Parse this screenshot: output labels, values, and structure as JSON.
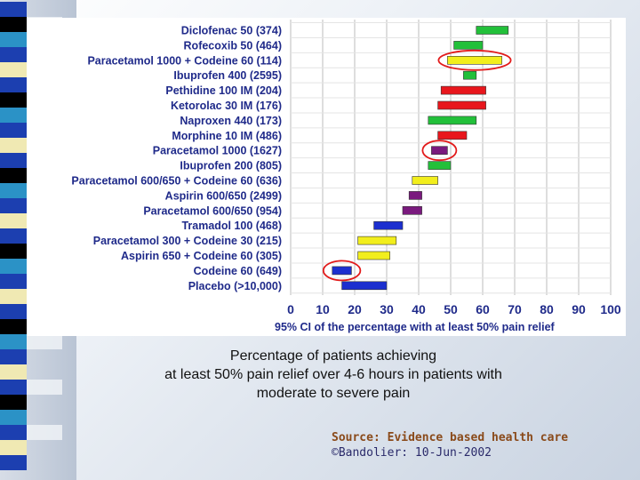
{
  "chart_data": {
    "type": "interval",
    "xlabel": "95% CI of the percentage with at least 50% pain relief",
    "xlim": [
      0,
      100
    ],
    "x_ticks": [
      "0",
      "10",
      "20",
      "30",
      "40",
      "50",
      "60",
      "70",
      "80",
      "90",
      "100"
    ],
    "grid": true,
    "rows": [
      {
        "label": "Diclofenac 50 (374)",
        "low": 58,
        "high": 68,
        "color": "#22c03a",
        "circled": false
      },
      {
        "label": "Rofecoxib 50 (464)",
        "low": 51,
        "high": 60,
        "color": "#22c03a",
        "circled": false
      },
      {
        "label": "Paracetamol 1000 + Codeine 60 (114)",
        "low": 49,
        "high": 66,
        "color": "#f2ee1c",
        "circled": true
      },
      {
        "label": "Ibuprofen 400 (2595)",
        "low": 54,
        "high": 58,
        "color": "#22c03a",
        "circled": false
      },
      {
        "label": "Pethidine 100 IM (204)",
        "low": 47,
        "high": 61,
        "color": "#e8161c",
        "circled": false
      },
      {
        "label": "Ketorolac 30 IM (176)",
        "low": 46,
        "high": 61,
        "color": "#e8161c",
        "circled": false
      },
      {
        "label": "Naproxen 440 (173)",
        "low": 43,
        "high": 58,
        "color": "#22c03a",
        "circled": false
      },
      {
        "label": "Morphine 10 IM (486)",
        "low": 46,
        "high": 55,
        "color": "#e8161c",
        "circled": false
      },
      {
        "label": "Paracetamol 1000 (1627)",
        "low": 44,
        "high": 49,
        "color": "#7a1a7e",
        "circled": true
      },
      {
        "label": "Ibuprofen 200 (805)",
        "low": 43,
        "high": 50,
        "color": "#22c03a",
        "circled": false
      },
      {
        "label": "Paracetamol 600/650 + Codeine 60 (636)",
        "low": 38,
        "high": 46,
        "color": "#f2ee1c",
        "circled": false
      },
      {
        "label": "Aspirin 600/650 (2499)",
        "low": 37,
        "high": 41,
        "color": "#7a1a7e",
        "circled": false
      },
      {
        "label": "Paracetamol 600/650 (954)",
        "low": 35,
        "high": 41,
        "color": "#7a1a7e",
        "circled": false
      },
      {
        "label": "Tramadol 100 (468)",
        "low": 26,
        "high": 35,
        "color": "#1c2fcf",
        "circled": false
      },
      {
        "label": "Paracetamol 300 + Codeine 30 (215)",
        "low": 21,
        "high": 33,
        "color": "#f2ee1c",
        "circled": false
      },
      {
        "label": "Aspirin  650 + Codeine 60 (305)",
        "low": 21,
        "high": 31,
        "color": "#f2ee1c",
        "circled": false
      },
      {
        "label": "Codeine 60 (649)",
        "low": 13,
        "high": 19,
        "color": "#1c2fcf",
        "circled": true
      },
      {
        "label": "Placebo (>10,000)",
        "low": 16,
        "high": 30,
        "color": "#1c2fcf",
        "circled": false
      }
    ]
  },
  "caption": {
    "line1": "Percentage of patients achieving",
    "line2": "at least 50% pain relief over 4-6 hours in patients with",
    "line3": "moderate to severe pain"
  },
  "source": {
    "title": "Source:  Evidence based health care",
    "credit": "©Bandolier: 10-Jun-2002"
  },
  "colors": {
    "label_text": "#1f2a8a",
    "grid": "#bcbcbc",
    "circle": "#e21a1a",
    "side_squares": [
      "#1c3fb0",
      "#000000",
      "#2b92c6",
      "#1c3fb0",
      "#f0e9b3",
      "#1c3fb0",
      "#000000",
      "#2b92c6",
      "#1c3fb0",
      "#f0e9b3"
    ]
  }
}
